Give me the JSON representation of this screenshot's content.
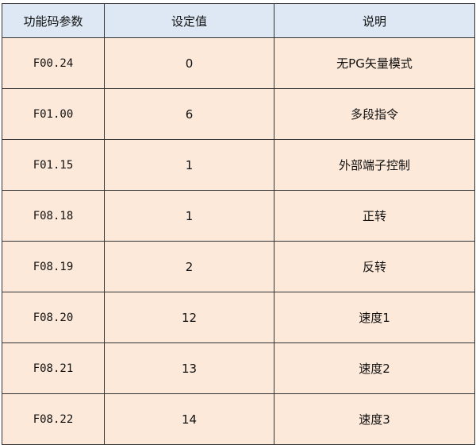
{
  "table": {
    "headers": [
      "功能码参数",
      "设定值",
      "说明"
    ],
    "rows": [
      {
        "code": "F00.24",
        "value": "0",
        "desc": "无PG矢量模式"
      },
      {
        "code": "F01.00",
        "value": "6",
        "desc": "多段指令"
      },
      {
        "code": "F01.15",
        "value": "1",
        "desc": "外部端子控制"
      },
      {
        "code": "F08.18",
        "value": "1",
        "desc": "正转"
      },
      {
        "code": "F08.19",
        "value": "2",
        "desc": "反转"
      },
      {
        "code": "F08.20",
        "value": "12",
        "desc": "速度1"
      },
      {
        "code": "F08.21",
        "value": "13",
        "desc": "速度2"
      },
      {
        "code": "F08.22",
        "value": "14",
        "desc": "速度3"
      }
    ],
    "colors": {
      "header_bg": "#dde8f4",
      "cell_bg": "#fde9d9",
      "border": "#333333"
    }
  }
}
